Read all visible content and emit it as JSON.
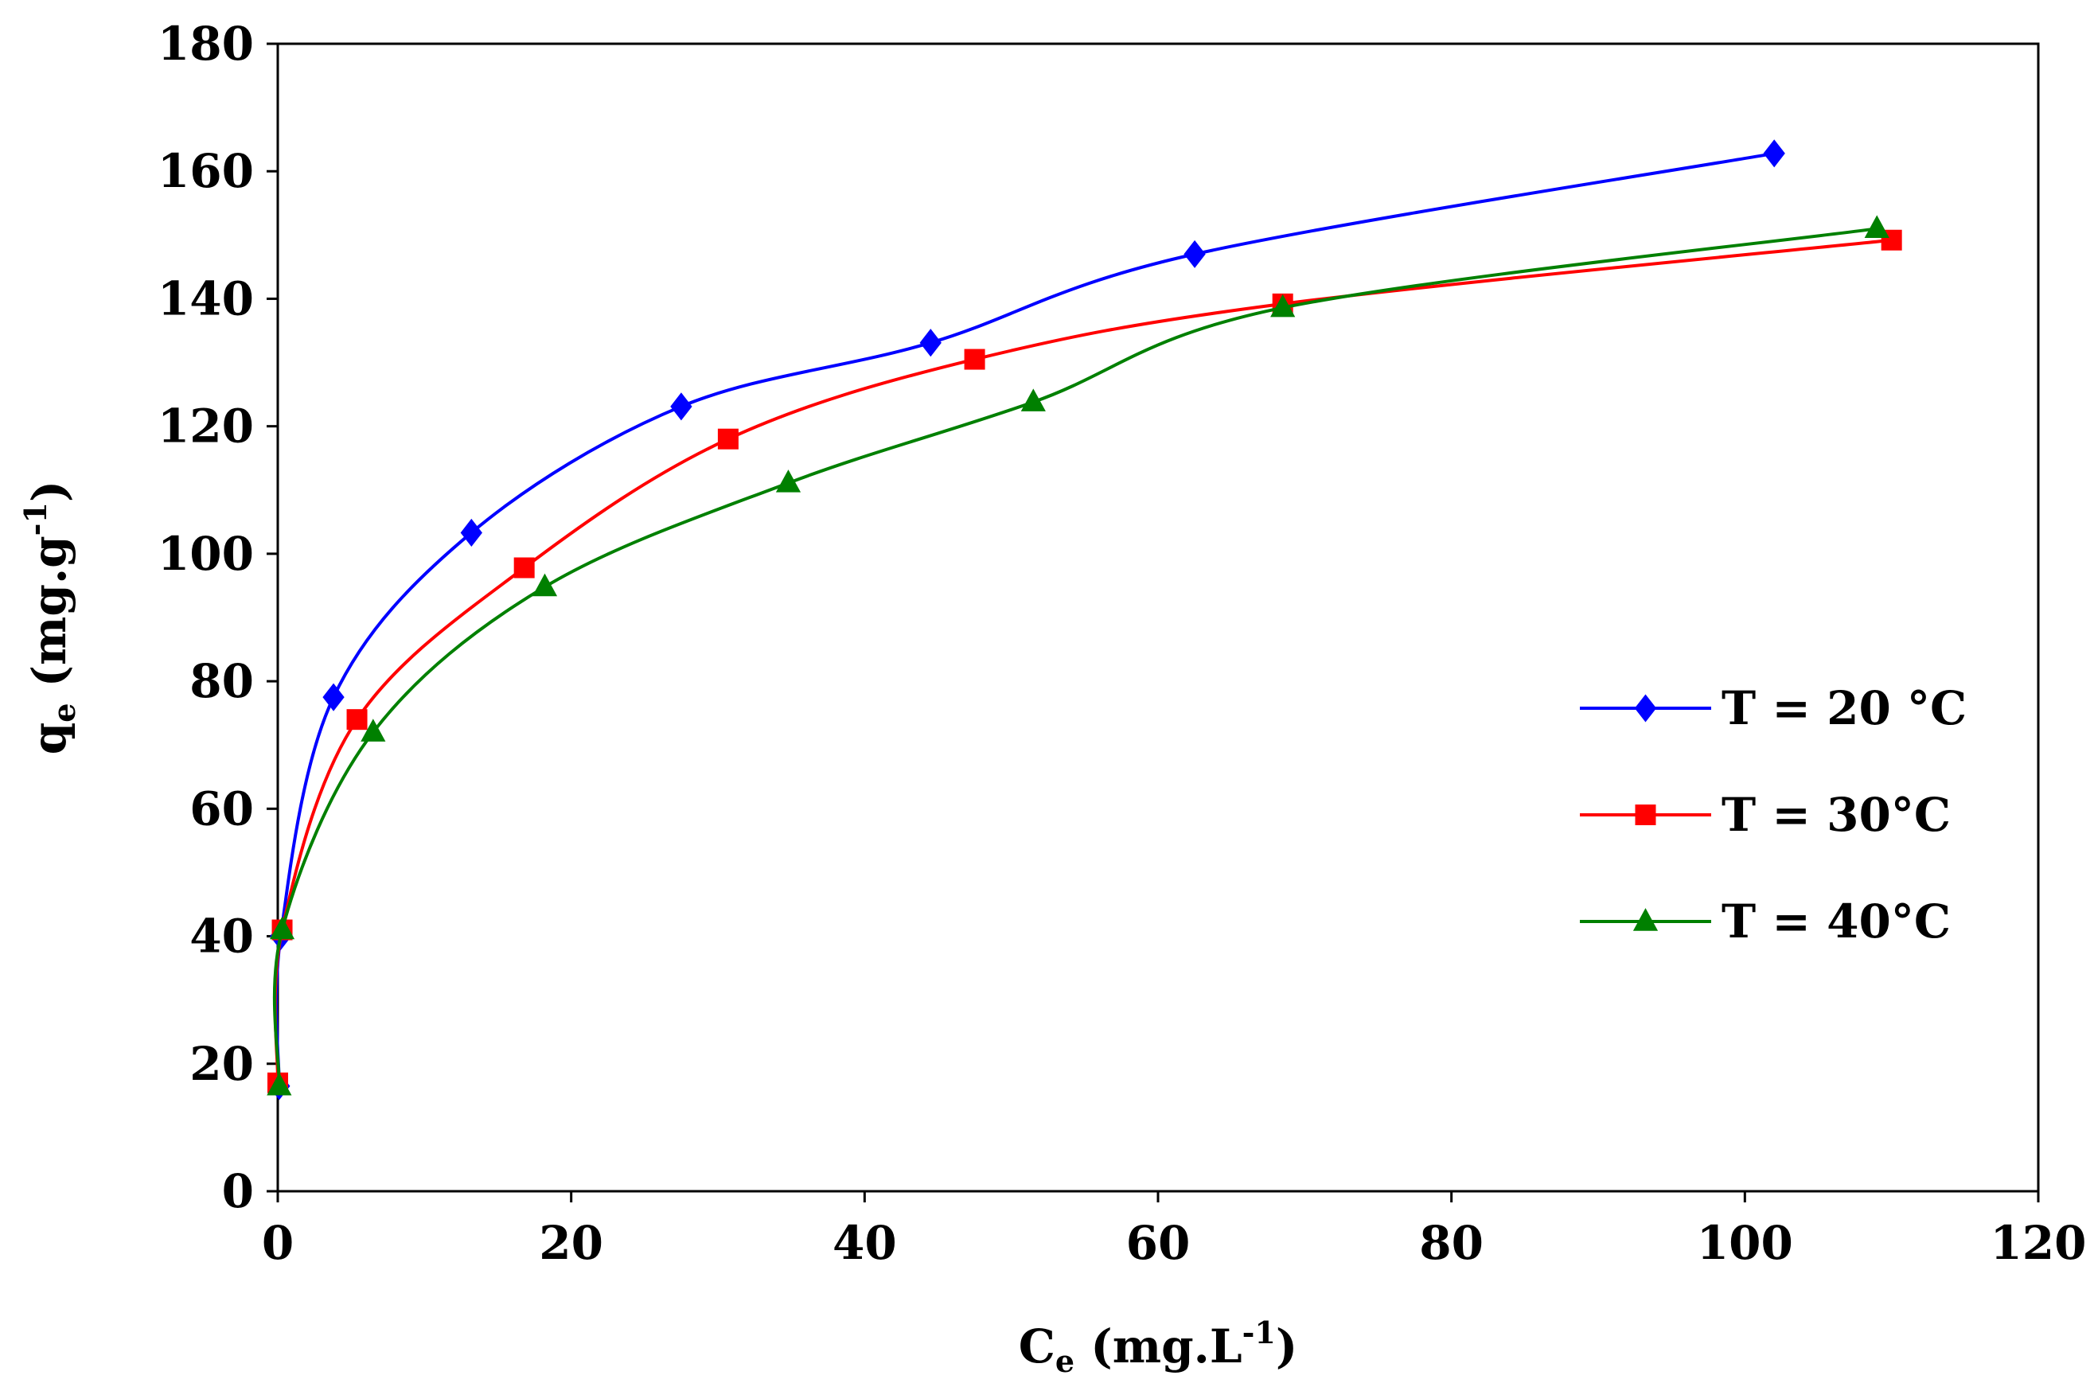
{
  "chart_data": {
    "type": "line",
    "title": "",
    "xlabel": {
      "main": "C",
      "sub": "e",
      "unit_open": " (mg.L",
      "sup": "-1",
      "unit_close": ")"
    },
    "ylabel": {
      "main": "q",
      "sub": "e",
      "unit_open": " (mg.g",
      "sup": "-1",
      "unit_close": ")"
    },
    "xlim": [
      0,
      120
    ],
    "ylim": [
      0,
      180
    ],
    "xticks": [
      0,
      20,
      40,
      60,
      80,
      100,
      120
    ],
    "yticks": [
      0,
      20,
      40,
      60,
      80,
      100,
      120,
      140,
      160,
      180
    ],
    "grid": false,
    "legend_position": "right",
    "series": [
      {
        "name": "T = 20 °C",
        "color": "#0000FF",
        "marker": "diamond",
        "x": [
          0.1,
          0.2,
          3.8,
          13.2,
          27.5,
          44.5,
          62.5,
          102.0
        ],
        "y": [
          16.5,
          40.0,
          77.5,
          103.3,
          123.1,
          133.1,
          147.0,
          162.8
        ]
      },
      {
        "name": "T = 30°C",
        "color": "#FF0000",
        "marker": "square",
        "x": [
          0.0,
          0.3,
          5.4,
          16.8,
          30.7,
          47.5,
          68.5,
          110.0
        ],
        "y": [
          17.0,
          41.0,
          74.0,
          97.8,
          118.0,
          130.5,
          139.2,
          149.2
        ]
      },
      {
        "name": "T = 40°C",
        "color": "#008000",
        "marker": "triangle",
        "x": [
          0.1,
          0.3,
          6.5,
          18.2,
          34.8,
          51.5,
          68.5,
          109.0
        ],
        "y": [
          16.5,
          41.0,
          72.0,
          94.8,
          111.1,
          123.8,
          138.6,
          151.0
        ]
      }
    ]
  }
}
